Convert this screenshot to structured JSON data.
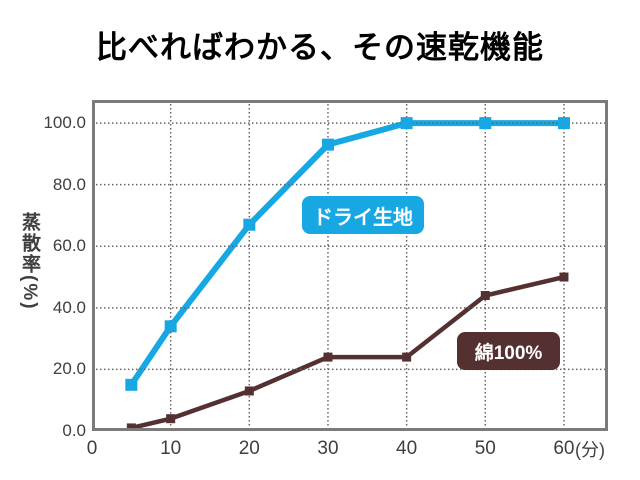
{
  "title": "比べればわかる、その速乾機能",
  "colors": {
    "dry_line": "#17a8e3",
    "cotton_line": "#553031",
    "plot_border": "#7b7b7b",
    "gridline": "#666666",
    "tick_text": "#3f3f3f",
    "background": "#ffffff"
  },
  "chart_data": {
    "type": "line",
    "title": "比べればわかる、その速乾機能",
    "x": [
      5,
      10,
      20,
      30,
      40,
      50,
      60
    ],
    "series": [
      {
        "name": "ドライ生地",
        "color": "#17a8e3",
        "values": [
          15,
          34,
          67,
          93,
          100,
          100,
          100
        ]
      },
      {
        "name": "綿100%",
        "color": "#553031",
        "values": [
          1,
          4,
          13,
          24,
          24,
          44,
          50
        ]
      }
    ],
    "xlabel": "",
    "ylabel": "蒸散率(%)",
    "x_unit": "(分)",
    "x_ticks": {
      "values": [
        0,
        10,
        20,
        30,
        40,
        50,
        60
      ],
      "labels": [
        "0",
        "10",
        "20",
        "30",
        "40",
        "50",
        "60"
      ]
    },
    "y_ticks": {
      "values": [
        100,
        80,
        60,
        40,
        20,
        0
      ],
      "labels": [
        "100.0",
        "80.0",
        "60.0",
        "40.0",
        "20.0",
        "0.0"
      ]
    },
    "xlim": [
      0,
      65.6
    ],
    "ylim": [
      0,
      107.5
    ],
    "grid": {
      "x_values": [
        10,
        20,
        30,
        40,
        50,
        60
      ],
      "y_values": [
        20,
        40,
        60,
        80,
        100
      ],
      "style": "dotted"
    },
    "legend_position": "inline-labels-on-chart"
  }
}
